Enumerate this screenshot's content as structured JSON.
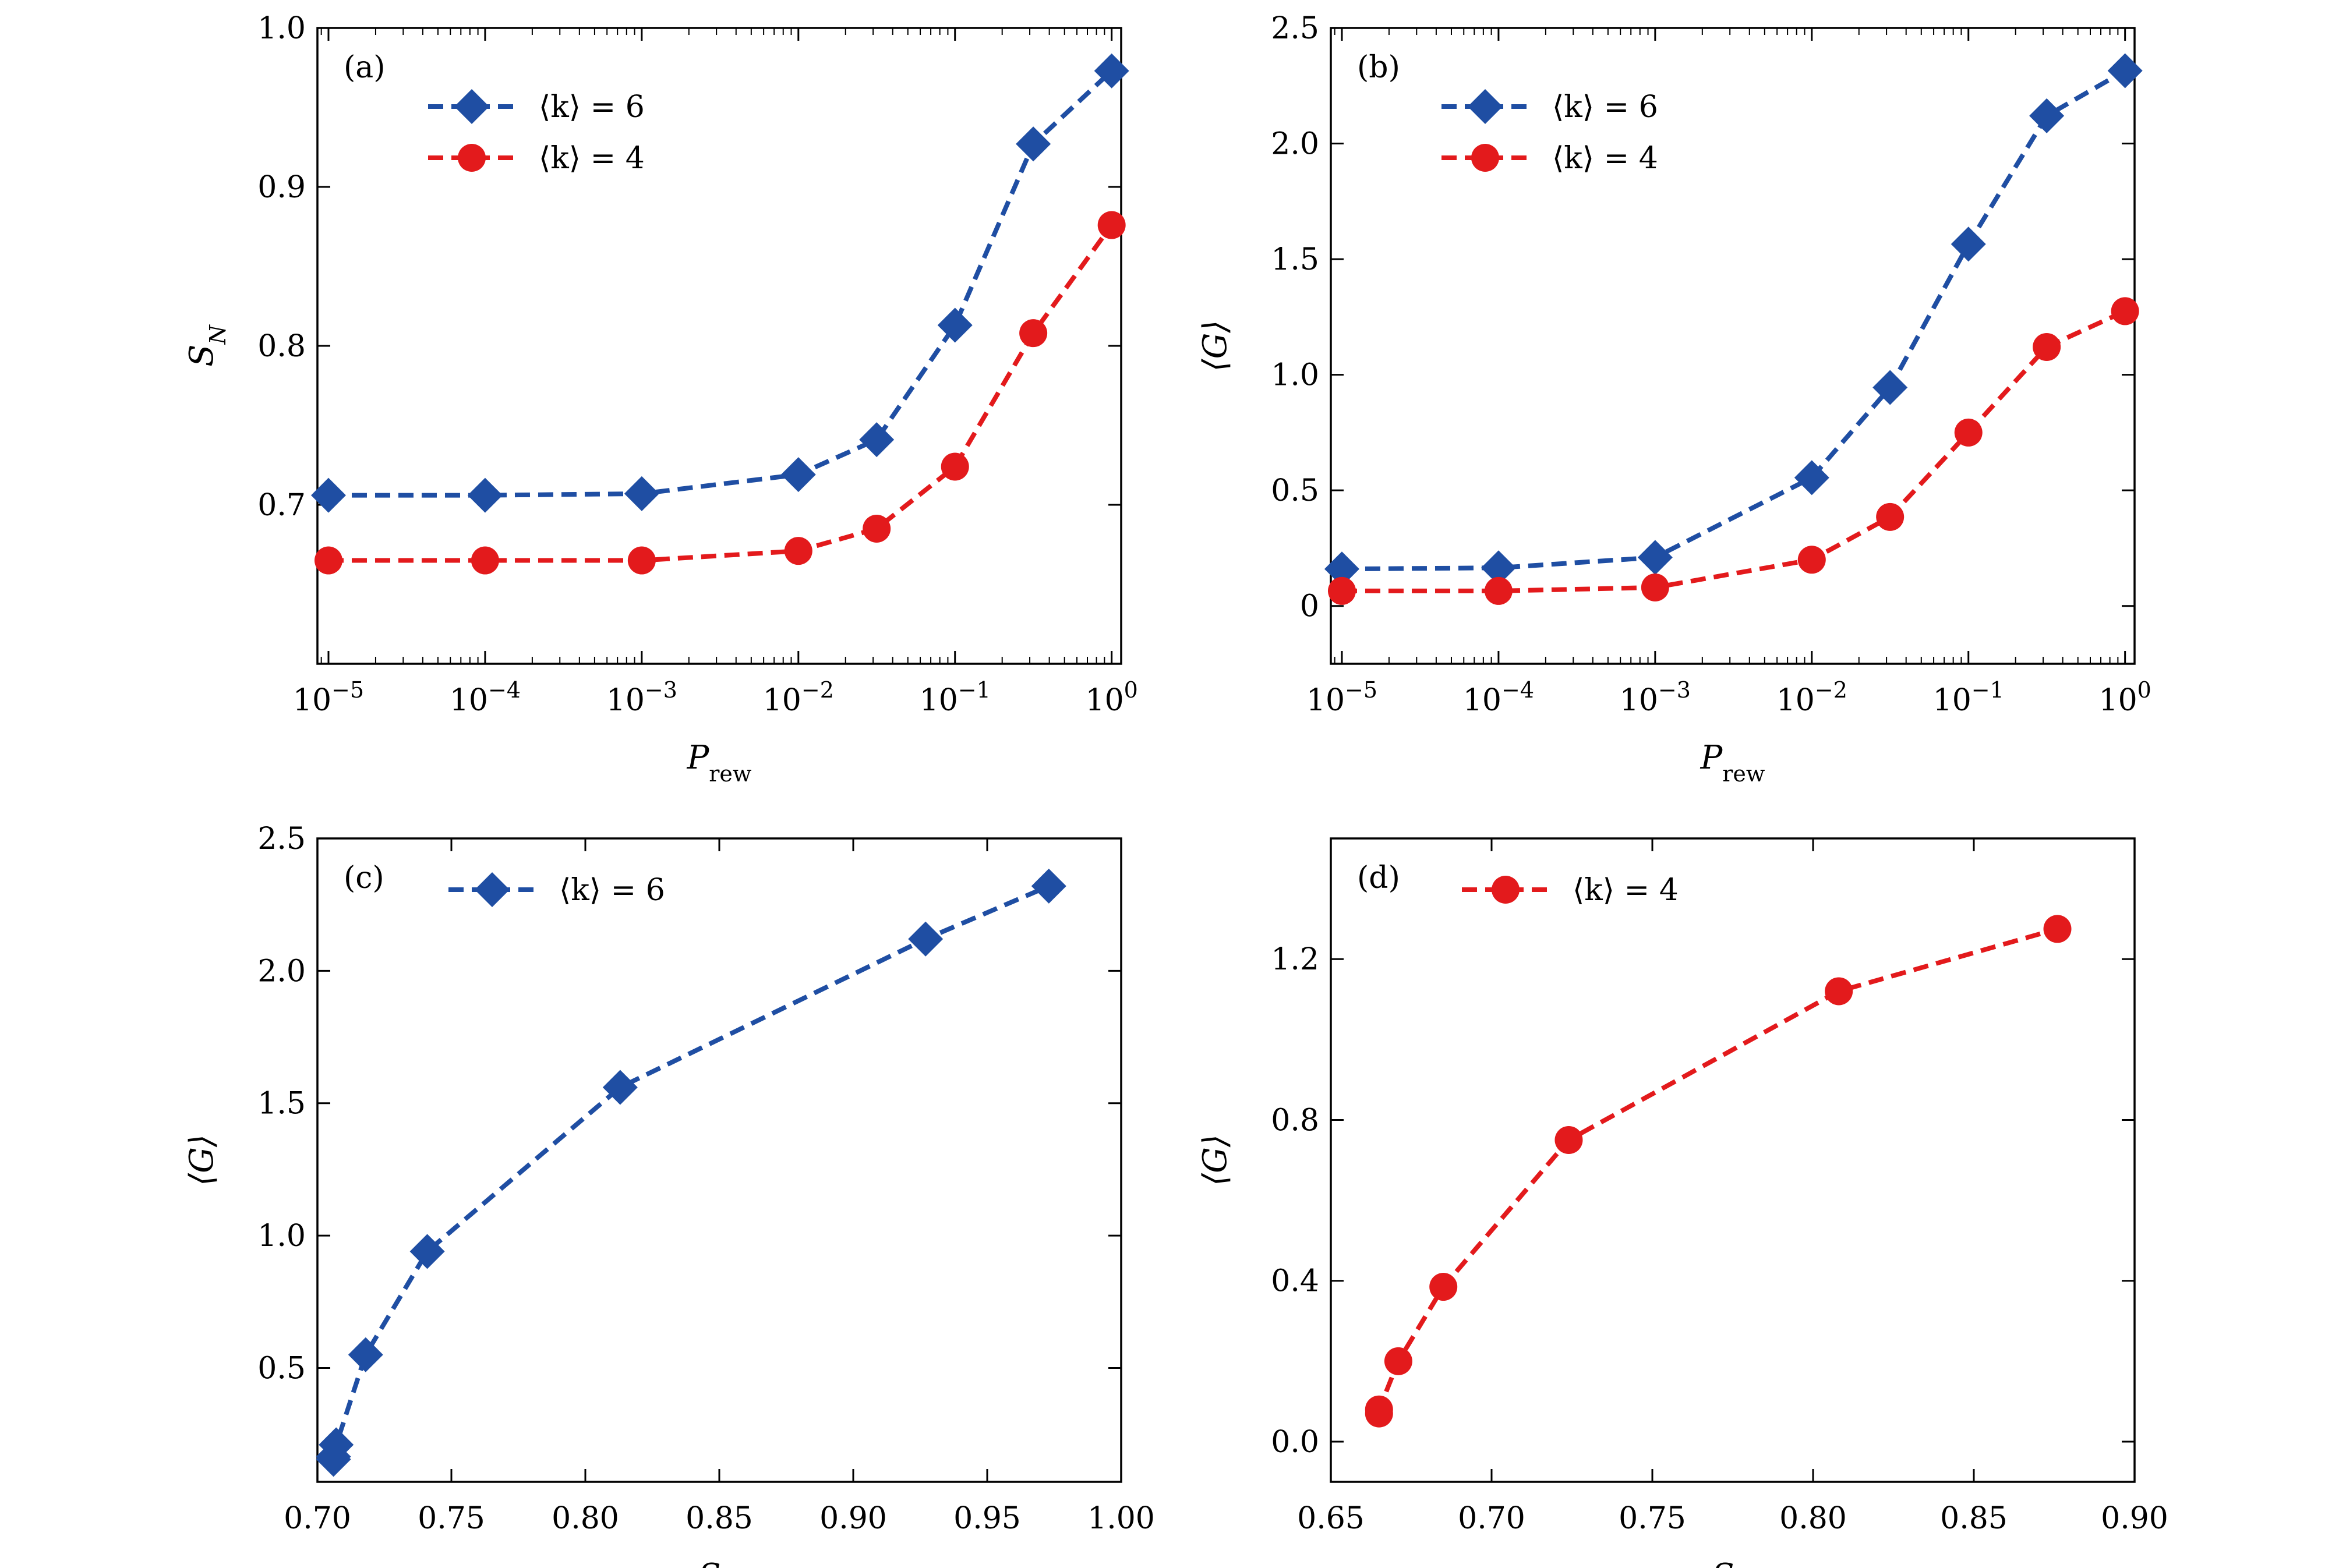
{
  "colors": {
    "blue": "#1f4ea3",
    "red": "#e31a1c",
    "axis": "#000000"
  },
  "chart_data": [
    {
      "id": "a",
      "type": "line",
      "panel_label": "(a)",
      "xscale": "log",
      "xlim": [
        8.5e-06,
        1.15
      ],
      "ylim": [
        0.6,
        1.0
      ],
      "xticks": [
        1e-05,
        0.0001,
        0.001,
        0.01,
        0.1,
        1
      ],
      "xtick_labels": [
        [
          "10",
          "−5"
        ],
        [
          "10",
          "−4"
        ],
        [
          "10",
          "−3"
        ],
        [
          "10",
          "−2"
        ],
        [
          "10",
          "−1"
        ],
        [
          "10",
          "0"
        ]
      ],
      "yticks": [
        0.7,
        0.8,
        0.9,
        1.0
      ],
      "ytick_labels": [
        "0.7",
        "0.8",
        "0.9",
        "1.0"
      ],
      "xlabel": {
        "main": "P",
        "sub": "rew"
      },
      "ylabel": {
        "main": "S",
        "sub": "N"
      },
      "legend_position": "upper-left",
      "series": [
        {
          "name": "⟨k⟩ = 6",
          "color_key": "blue",
          "marker": "diamond",
          "x": [
            1e-05,
            0.0001,
            0.001,
            0.01,
            0.0316,
            0.1,
            0.316,
            1
          ],
          "y": [
            0.706,
            0.706,
            0.707,
            0.719,
            0.741,
            0.813,
            0.927,
            0.973
          ]
        },
        {
          "name": "⟨k⟩ = 4",
          "color_key": "red",
          "marker": "circle",
          "x": [
            1e-05,
            0.0001,
            0.001,
            0.01,
            0.0316,
            0.1,
            0.316,
            1
          ],
          "y": [
            0.665,
            0.665,
            0.665,
            0.671,
            0.685,
            0.724,
            0.808,
            0.876
          ]
        }
      ]
    },
    {
      "id": "b",
      "type": "line",
      "panel_label": "(b)",
      "xscale": "log",
      "xlim": [
        8.5e-06,
        1.15
      ],
      "ylim": [
        -0.25,
        2.5
      ],
      "xticks": [
        1e-05,
        0.0001,
        0.001,
        0.01,
        0.1,
        1
      ],
      "xtick_labels": [
        [
          "10",
          "−5"
        ],
        [
          "10",
          "−4"
        ],
        [
          "10",
          "−3"
        ],
        [
          "10",
          "−2"
        ],
        [
          "10",
          "−1"
        ],
        [
          "10",
          "0"
        ]
      ],
      "yticks": [
        0,
        0.5,
        1.0,
        1.5,
        2.0,
        2.5
      ],
      "ytick_labels": [
        "0",
        "0.5",
        "1.0",
        "1.5",
        "2.0",
        "2.5"
      ],
      "xlabel": {
        "main": "P",
        "sub": "rew"
      },
      "ylabel": {
        "main": "⟨G⟩",
        "sub": ""
      },
      "legend_position": "upper-left",
      "series": [
        {
          "name": "⟨k⟩ = 6",
          "color_key": "blue",
          "marker": "diamond",
          "x": [
            1e-05,
            0.0001,
            0.001,
            0.01,
            0.0316,
            0.1,
            0.316,
            1
          ],
          "y": [
            0.16,
            0.165,
            0.21,
            0.555,
            0.945,
            1.565,
            2.12,
            2.315
          ]
        },
        {
          "name": "⟨k⟩ = 4",
          "color_key": "red",
          "marker": "circle",
          "x": [
            1e-05,
            0.0001,
            0.001,
            0.01,
            0.0316,
            0.1,
            0.316,
            1
          ],
          "y": [
            0.065,
            0.065,
            0.08,
            0.2,
            0.385,
            0.75,
            1.12,
            1.275
          ]
        }
      ]
    },
    {
      "id": "c",
      "type": "line",
      "panel_label": "(c)",
      "xscale": "linear",
      "xlim": [
        0.7,
        1.0
      ],
      "ylim": [
        0.07,
        2.5
      ],
      "xticks": [
        0.7,
        0.75,
        0.8,
        0.85,
        0.9,
        0.95,
        1.0
      ],
      "xtick_labels": [
        "0.70",
        "0.75",
        "0.80",
        "0.85",
        "0.90",
        "0.95",
        "1.00"
      ],
      "yticks": [
        0.5,
        1.0,
        1.5,
        2.0,
        2.5
      ],
      "ytick_labels": [
        "0.5",
        "1.0",
        "1.5",
        "2.0",
        "2.5"
      ],
      "xlabel": {
        "main": "S",
        "sub": "N"
      },
      "ylabel": {
        "main": "⟨G⟩",
        "sub": ""
      },
      "legend_position": "upper-left",
      "series": [
        {
          "name": "⟨k⟩ = 6",
          "color_key": "blue",
          "marker": "diamond",
          "x": [
            0.706,
            0.706,
            0.707,
            0.718,
            0.741,
            0.813,
            0.927,
            0.973
          ],
          "y": [
            0.155,
            0.165,
            0.21,
            0.55,
            0.94,
            1.56,
            2.12,
            2.32
          ]
        }
      ]
    },
    {
      "id": "d",
      "type": "line",
      "panel_label": "(d)",
      "xscale": "linear",
      "xlim": [
        0.65,
        0.9
      ],
      "ylim": [
        -0.1,
        1.5
      ],
      "xticks": [
        0.65,
        0.7,
        0.75,
        0.8,
        0.85,
        0.9
      ],
      "xtick_labels": [
        "0.65",
        "0.70",
        "0.75",
        "0.80",
        "0.85",
        "0.90"
      ],
      "yticks": [
        0.0,
        0.4,
        0.8,
        1.2
      ],
      "ytick_labels": [
        "0.0",
        "0.4",
        "0.8",
        "1.2"
      ],
      "xlabel": {
        "main": "S",
        "sub": "N"
      },
      "ylabel": {
        "main": "⟨G⟩",
        "sub": ""
      },
      "legend_position": "upper-left",
      "series": [
        {
          "name": "⟨k⟩ = 4",
          "color_key": "red",
          "marker": "circle",
          "x": [
            0.665,
            0.665,
            0.671,
            0.685,
            0.724,
            0.808,
            0.876
          ],
          "y": [
            0.07,
            0.08,
            0.2,
            0.385,
            0.75,
            1.12,
            1.275
          ]
        }
      ]
    }
  ]
}
